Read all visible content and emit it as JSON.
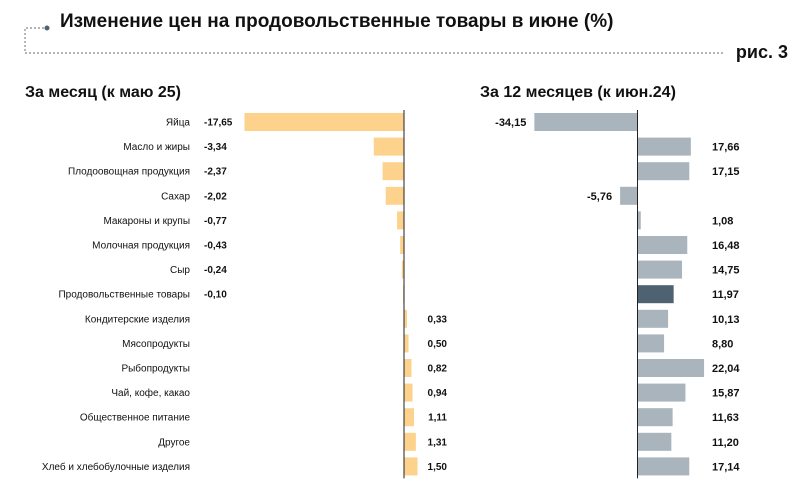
{
  "title": "Изменение цен на продовольственные товары в июне (%)",
  "figure_label": "рис. 3",
  "colors": {
    "monthly": "#fdd28c",
    "yearly": "#aab4bc",
    "yearly_highlight": "#4f6272"
  },
  "chart_data": [
    {
      "type": "bar",
      "orientation": "horizontal",
      "title": "За месяц (к маю 25)",
      "categories": [
        "Яйца",
        "Масло и жиры",
        "Плодоовощная продукция",
        "Сахар",
        "Макароны и крупы",
        "Молочная продукция",
        "Сыр",
        "Продовольственные товары",
        "Кондитерские изделия",
        "Мясопродукты",
        "Рыбопродукты",
        "Чай, кофе, какао",
        "Общественное питание",
        "Другое",
        "Хлеб и хлебобулочные изделия"
      ],
      "values": [
        -17.65,
        -3.34,
        -2.37,
        -2.02,
        -0.77,
        -0.43,
        -0.24,
        -0.1,
        0.33,
        0.5,
        0.82,
        0.94,
        1.11,
        1.31,
        1.5
      ],
      "labels": [
        "-17,65",
        "-3,34",
        "-2,37",
        "-2,02",
        "-0,77",
        "-0,43",
        "-0,24",
        "-0,10",
        "0,33",
        "0,50",
        "0,82",
        "0,94",
        "1,11",
        "1,31",
        "1,50"
      ]
    },
    {
      "type": "bar",
      "orientation": "horizontal",
      "title": "За 12 месяцев (к июн.24)",
      "categories": [
        "Яйца",
        "Масло и жиры",
        "Плодоовощная продукция",
        "Сахар",
        "Макароны и крупы",
        "Молочная продукция",
        "Сыр",
        "Продовольственные товары",
        "Кондитерские изделия",
        "Мясопродукты",
        "Рыбопродукты",
        "Чай, кофе, какао",
        "Общественное питание",
        "Другое",
        "Хлеб и хлебобулочные изделия"
      ],
      "values": [
        -34.15,
        17.66,
        17.15,
        -5.76,
        1.08,
        16.48,
        14.75,
        11.97,
        10.13,
        8.8,
        22.04,
        15.87,
        11.63,
        11.2,
        17.14
      ],
      "labels": [
        "-34,15",
        "17,66",
        "17,15",
        "-5,76",
        "1,08",
        "16,48",
        "14,75",
        "11,97",
        "10,13",
        "8,80",
        "22,04",
        "15,87",
        "11,63",
        "11,20",
        "17,14"
      ],
      "highlight": "Продовольственные товары"
    }
  ]
}
